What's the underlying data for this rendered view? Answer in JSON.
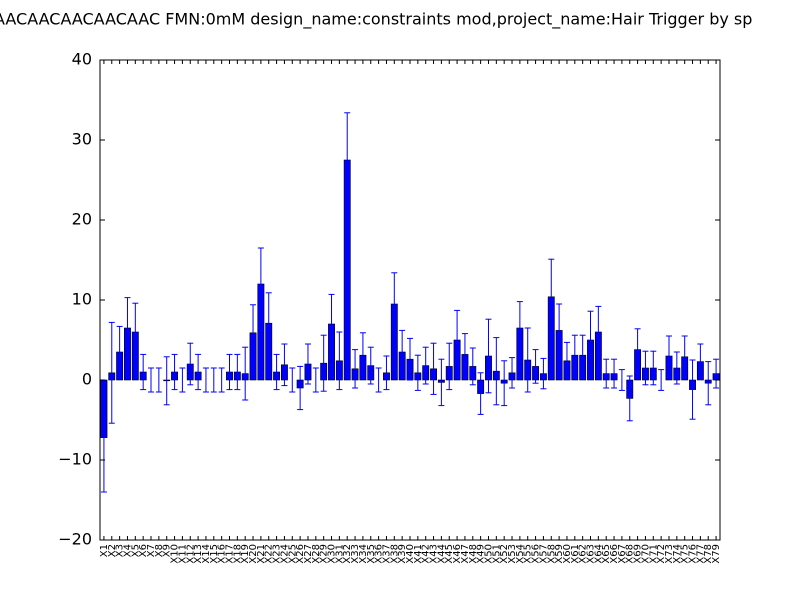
{
  "chart_data": {
    "type": "bar",
    "title": "AACAACAACAACAAC  FMN:0mM  design_name:constraints mod,project_name:Hair Trigger by sp",
    "categories": [
      "X1",
      "X2",
      "X3",
      "X4",
      "X5",
      "X6",
      "X7",
      "X8",
      "X9",
      "X10",
      "X11",
      "X12",
      "X13",
      "X14",
      "X15",
      "X16",
      "X17",
      "X18",
      "X19",
      "X20",
      "X21",
      "X22",
      "X23",
      "X24",
      "X25",
      "X26",
      "X27",
      "X28",
      "X29",
      "X30",
      "X31",
      "X32",
      "X33",
      "X34",
      "X35",
      "X36",
      "X37",
      "X38",
      "X39",
      "X40",
      "X41",
      "X42",
      "X43",
      "X44",
      "X45",
      "X46",
      "X47",
      "X48",
      "X49",
      "X50",
      "X51",
      "X52",
      "X53",
      "X54",
      "X55",
      "X56",
      "X57",
      "X58",
      "X59",
      "X60",
      "X61",
      "X62",
      "X63",
      "X64",
      "X65",
      "X66",
      "X67",
      "X68",
      "X69",
      "X70",
      "X71",
      "X72",
      "X73",
      "X74",
      "X75",
      "X76",
      "X77",
      "X78",
      "X79"
    ],
    "values": [
      -7.2,
      0.9,
      3.5,
      6.5,
      6,
      1,
      0,
      0,
      -0.1,
      1,
      0,
      2,
      1,
      0,
      0,
      0,
      1,
      1,
      0.8,
      5.9,
      12,
      7.1,
      1,
      1.9,
      0,
      -1,
      2,
      0,
      2.1,
      7,
      2.4,
      27.5,
      1.4,
      3.1,
      1.8,
      0,
      0.9,
      9.5,
      3.5,
      2.6,
      0.9,
      1.8,
      1.4,
      -0.3,
      1.7,
      5,
      3.2,
      1.7,
      -1.7,
      3,
      1.1,
      -0.4,
      0.9,
      6.5,
      2.5,
      1.7,
      0.8,
      10.4,
      6.2,
      2.4,
      3.1,
      3.1,
      5,
      6,
      0.8,
      0.8,
      0,
      -2.3,
      3.8,
      1.5,
      1.5,
      0,
      3,
      1.5,
      2.9,
      -1.2,
      2.3,
      -0.4,
      0.8
    ],
    "errors": [
      6.8,
      6.3,
      3.2,
      3.8,
      3.6,
      2.2,
      1.5,
      1.5,
      3,
      2.2,
      1.5,
      2.6,
      2.2,
      1.5,
      1.5,
      1.5,
      2.2,
      2.2,
      3.3,
      3.5,
      4.5,
      3.8,
      2.2,
      2.6,
      1.5,
      2.7,
      2.5,
      1.5,
      3.5,
      3.7,
      3.6,
      5.9,
      2.4,
      2.8,
      2.3,
      1.5,
      2.1,
      3.9,
      2.7,
      2.6,
      2.2,
      2.3,
      3.2,
      2.9,
      2.9,
      3.7,
      2.6,
      2.3,
      2.6,
      4.6,
      4.2,
      2.8,
      1.9,
      3.3,
      4,
      2.1,
      1.9,
      4.7,
      3.3,
      2.3,
      2.5,
      2.5,
      3.6,
      3.2,
      1.8,
      1.8,
      1.3,
      2.8,
      2.6,
      2.1,
      2.1,
      1.3,
      2.5,
      2,
      2.6,
      3.7,
      2.2,
      2.7,
      1.8
    ],
    "color": "#0000ff",
    "error_color": "#0000ff",
    "ylim": [
      -20,
      40
    ],
    "yticks": [
      {
        "value": -20,
        "label": "−20"
      },
      {
        "value": -10,
        "label": "−10"
      },
      0,
      10,
      20,
      30,
      40
    ]
  }
}
